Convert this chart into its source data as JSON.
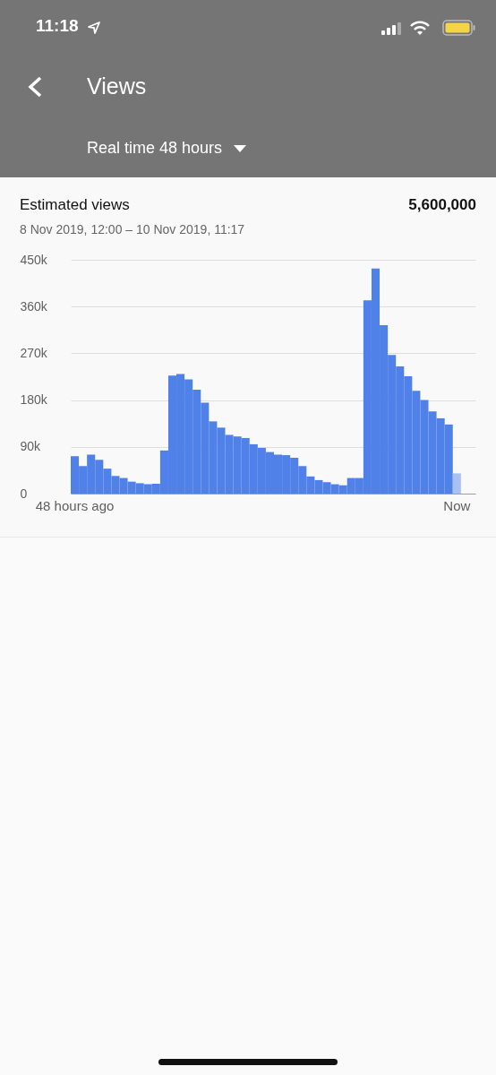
{
  "chart_data": {
    "type": "bar",
    "title": "Estimated views",
    "subtitle": "8 Nov 2019, 12:00 – 10 Nov 2019, 11:17",
    "annotations": [
      "11:18",
      "Views",
      "Real time 48 hours",
      "5,600,000"
    ],
    "categories": [
      "48 hours ago",
      null,
      null,
      null,
      null,
      null,
      null,
      null,
      null,
      null,
      null,
      null,
      null,
      null,
      null,
      null,
      null,
      null,
      null,
      null,
      null,
      null,
      null,
      null,
      null,
      null,
      null,
      null,
      null,
      null,
      null,
      null,
      null,
      null,
      null,
      null,
      null,
      null,
      null,
      null,
      null,
      null,
      null,
      null,
      null,
      null,
      null,
      "Now"
    ],
    "values": [
      72000,
      53000,
      75000,
      65000,
      48000,
      34000,
      30000,
      23000,
      20000,
      18000,
      19000,
      83000,
      227000,
      230000,
      220000,
      200000,
      175000,
      139000,
      127000,
      113000,
      110000,
      107000,
      95000,
      88000,
      80000,
      75000,
      74000,
      69000,
      53000,
      33000,
      26000,
      22000,
      18000,
      16000,
      30000,
      30000,
      372000,
      433000,
      324000,
      267000,
      245000,
      226000,
      198000,
      180000,
      158000,
      145000,
      133000,
      39000
    ],
    "colors": [
      "#4f81e9",
      "#4f81e9",
      "#4f81e9",
      "#4f81e9",
      "#4f81e9",
      "#4f81e9",
      "#4f81e9",
      "#4f81e9",
      "#4f81e9",
      "#4f81e9",
      "#4f81e9",
      "#4f81e9",
      "#4f81e9",
      "#4f81e9",
      "#4f81e9",
      "#4f81e9",
      "#4f81e9",
      "#4f81e9",
      "#4f81e9",
      "#4f81e9",
      "#4f81e9",
      "#4f81e9",
      "#4f81e9",
      "#4f81e9",
      "#4f81e9",
      "#4f81e9",
      "#4f81e9",
      "#4f81e9",
      "#4f81e9",
      "#4f81e9",
      "#4f81e9",
      "#4f81e9",
      "#4f81e9",
      "#4f81e9",
      "#4f81e9",
      "#4f81e9",
      "#4f81e9",
      "#4f81e9",
      "#4f81e9",
      "#4f81e9",
      "#4f81e9",
      "#4f81e9",
      "#4f81e9",
      "#4f81e9",
      "#4f81e9",
      "#4f81e9",
      "#4f81e9",
      "#a9c1f2"
    ],
    "ylim": [
      0,
      450000
    ],
    "yticks": [
      0,
      {
        "value": 90000,
        "label": "90k"
      },
      {
        "value": 180000,
        "label": "180k"
      },
      {
        "value": 270000,
        "label": "270k"
      },
      {
        "value": 360000,
        "label": "360k"
      },
      {
        "value": 450000,
        "label": "450k"
      }
    ],
    "grid": "y"
  }
}
